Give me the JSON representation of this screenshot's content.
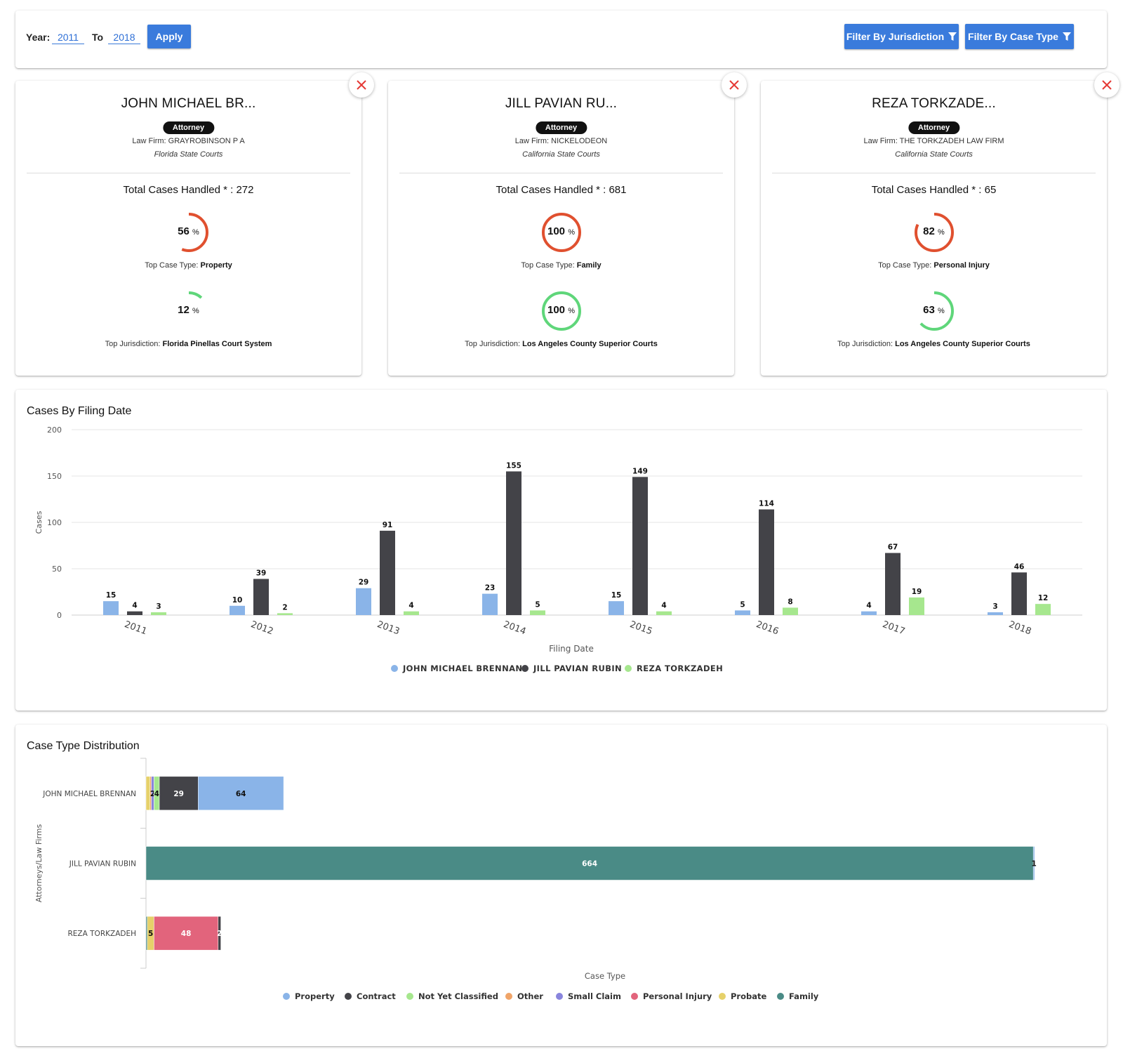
{
  "filters": {
    "year_label": "Year:",
    "year_from": "2011",
    "to_label": "To",
    "year_to": "2018",
    "apply_label": "Apply",
    "filter_jurisdiction_label": "Filter By Jurisdiction",
    "filter_case_type_label": "Filter By Case Type"
  },
  "attorneys": [
    {
      "name": "JOHN MICHAEL BR...",
      "role": "Attorney",
      "firm_label": "Law Firm:",
      "firm": "GRAYROBINSON P A",
      "court": "Florida State Courts",
      "total_label": "Total Cases Handled * :",
      "total": "272",
      "case_type_pct": "56",
      "case_type_pct_value": 56,
      "pct_symbol": "%",
      "top_case_type_label": "Top Case Type:",
      "top_case_type": "Property",
      "jurisdiction_pct": "12",
      "jurisdiction_pct_value": 12,
      "top_jurisdiction_label": "Top Jurisdiction:",
      "top_jurisdiction": "Florida Pinellas Court System"
    },
    {
      "name": "JILL PAVIAN RU...",
      "role": "Attorney",
      "firm_label": "Law Firm:",
      "firm": "NICKELODEON",
      "court": "California State Courts",
      "total_label": "Total Cases Handled * :",
      "total": "681",
      "case_type_pct": "100",
      "case_type_pct_value": 100,
      "pct_symbol": "%",
      "top_case_type_label": "Top Case Type:",
      "top_case_type": "Family",
      "jurisdiction_pct": "100",
      "jurisdiction_pct_value": 100,
      "top_jurisdiction_label": "Top Jurisdiction:",
      "top_jurisdiction": "Los Angeles County Superior Courts"
    },
    {
      "name": "REZA TORKZADE...",
      "role": "Attorney",
      "firm_label": "Law Firm:",
      "firm": "THE TORKZADEH LAW FIRM",
      "court": "California State Courts",
      "total_label": "Total Cases Handled * :",
      "total": "65",
      "case_type_pct": "82",
      "case_type_pct_value": 82,
      "pct_symbol": "%",
      "top_case_type_label": "Top Case Type:",
      "top_case_type": "Personal Injury",
      "jurisdiction_pct": "63",
      "jurisdiction_pct_value": 63,
      "top_jurisdiction_label": "Top Jurisdiction:",
      "top_jurisdiction": "Los Angeles County Superior Courts"
    }
  ],
  "colors": {
    "ring_case_type": "#e0502f",
    "ring_jurisdiction": "#5fd67a",
    "close_x": "#e53935",
    "primary_button": "#3a7bdc"
  },
  "chart_data": [
    {
      "type": "bar",
      "title": "Cases By Filing Date",
      "xlabel": "Filing Date",
      "ylabel": "Cases",
      "ylim": [
        0,
        200
      ],
      "yticks": [
        0,
        50,
        100,
        150,
        200
      ],
      "grid": true,
      "legend": "bottom-center",
      "categories": [
        "2011",
        "2012",
        "2013",
        "2014",
        "2015",
        "2016",
        "2017",
        "2018"
      ],
      "series": [
        {
          "name": "JOHN MICHAEL BRENNAN",
          "color": "#8ab4e8",
          "values": [
            15,
            10,
            29,
            23,
            15,
            5,
            4,
            3
          ]
        },
        {
          "name": "JILL PAVIAN RUBIN",
          "color": "#434348",
          "values": [
            4,
            39,
            91,
            155,
            149,
            114,
            67,
            46
          ]
        },
        {
          "name": "REZA TORKZADEH",
          "color": "#a6e78e",
          "values": [
            3,
            2,
            4,
            5,
            4,
            8,
            19,
            12
          ]
        }
      ]
    },
    {
      "type": "bar",
      "orientation": "horizontal-stacked",
      "title": "Case Type Distribution",
      "xlabel": "Case Type",
      "ylabel": "Attorneys/Law Firms",
      "legend": "bottom-center",
      "categories": [
        "JOHN MICHAEL BRENNAN",
        "JILL PAVIAN RUBIN",
        "REZA TORKZADEH"
      ],
      "series": [
        {
          "name": "Family",
          "color": "#4a8b86",
          "values": [
            0,
            664,
            1
          ],
          "labels": [
            "",
            "664",
            ""
          ]
        },
        {
          "name": "Probate",
          "color": "#e6d16a",
          "values": [
            3,
            0,
            5
          ],
          "labels": [
            "",
            "",
            "5"
          ]
        },
        {
          "name": "Other",
          "color": "#f0a468",
          "values": [
            1,
            0,
            0
          ],
          "labels": [
            "",
            "",
            ""
          ]
        },
        {
          "name": "Small Claim",
          "color": "#8985dd",
          "values": [
            2,
            0,
            0
          ],
          "labels": [
            "2",
            "",
            ""
          ]
        },
        {
          "name": "Not Yet Classified",
          "color": "#a6e78e",
          "values": [
            4,
            0,
            0
          ],
          "labels": [
            "4",
            "",
            ""
          ]
        },
        {
          "name": "Personal Injury",
          "color": "#e2647c",
          "values": [
            0,
            0,
            48
          ],
          "labels": [
            "",
            "",
            "48"
          ]
        },
        {
          "name": "Contract",
          "color": "#434348",
          "values": [
            29,
            0,
            2
          ],
          "labels": [
            "29",
            "",
            "2"
          ]
        },
        {
          "name": "Property",
          "color": "#8ab4e8",
          "values": [
            64,
            1,
            0
          ],
          "labels": [
            "64",
            "1",
            ""
          ]
        }
      ],
      "legend_order": [
        "Property",
        "Contract",
        "Not Yet Classified",
        "Other",
        "Small Claim",
        "Personal Injury",
        "Probate",
        "Family"
      ],
      "xlim": [
        0,
        666
      ]
    }
  ]
}
